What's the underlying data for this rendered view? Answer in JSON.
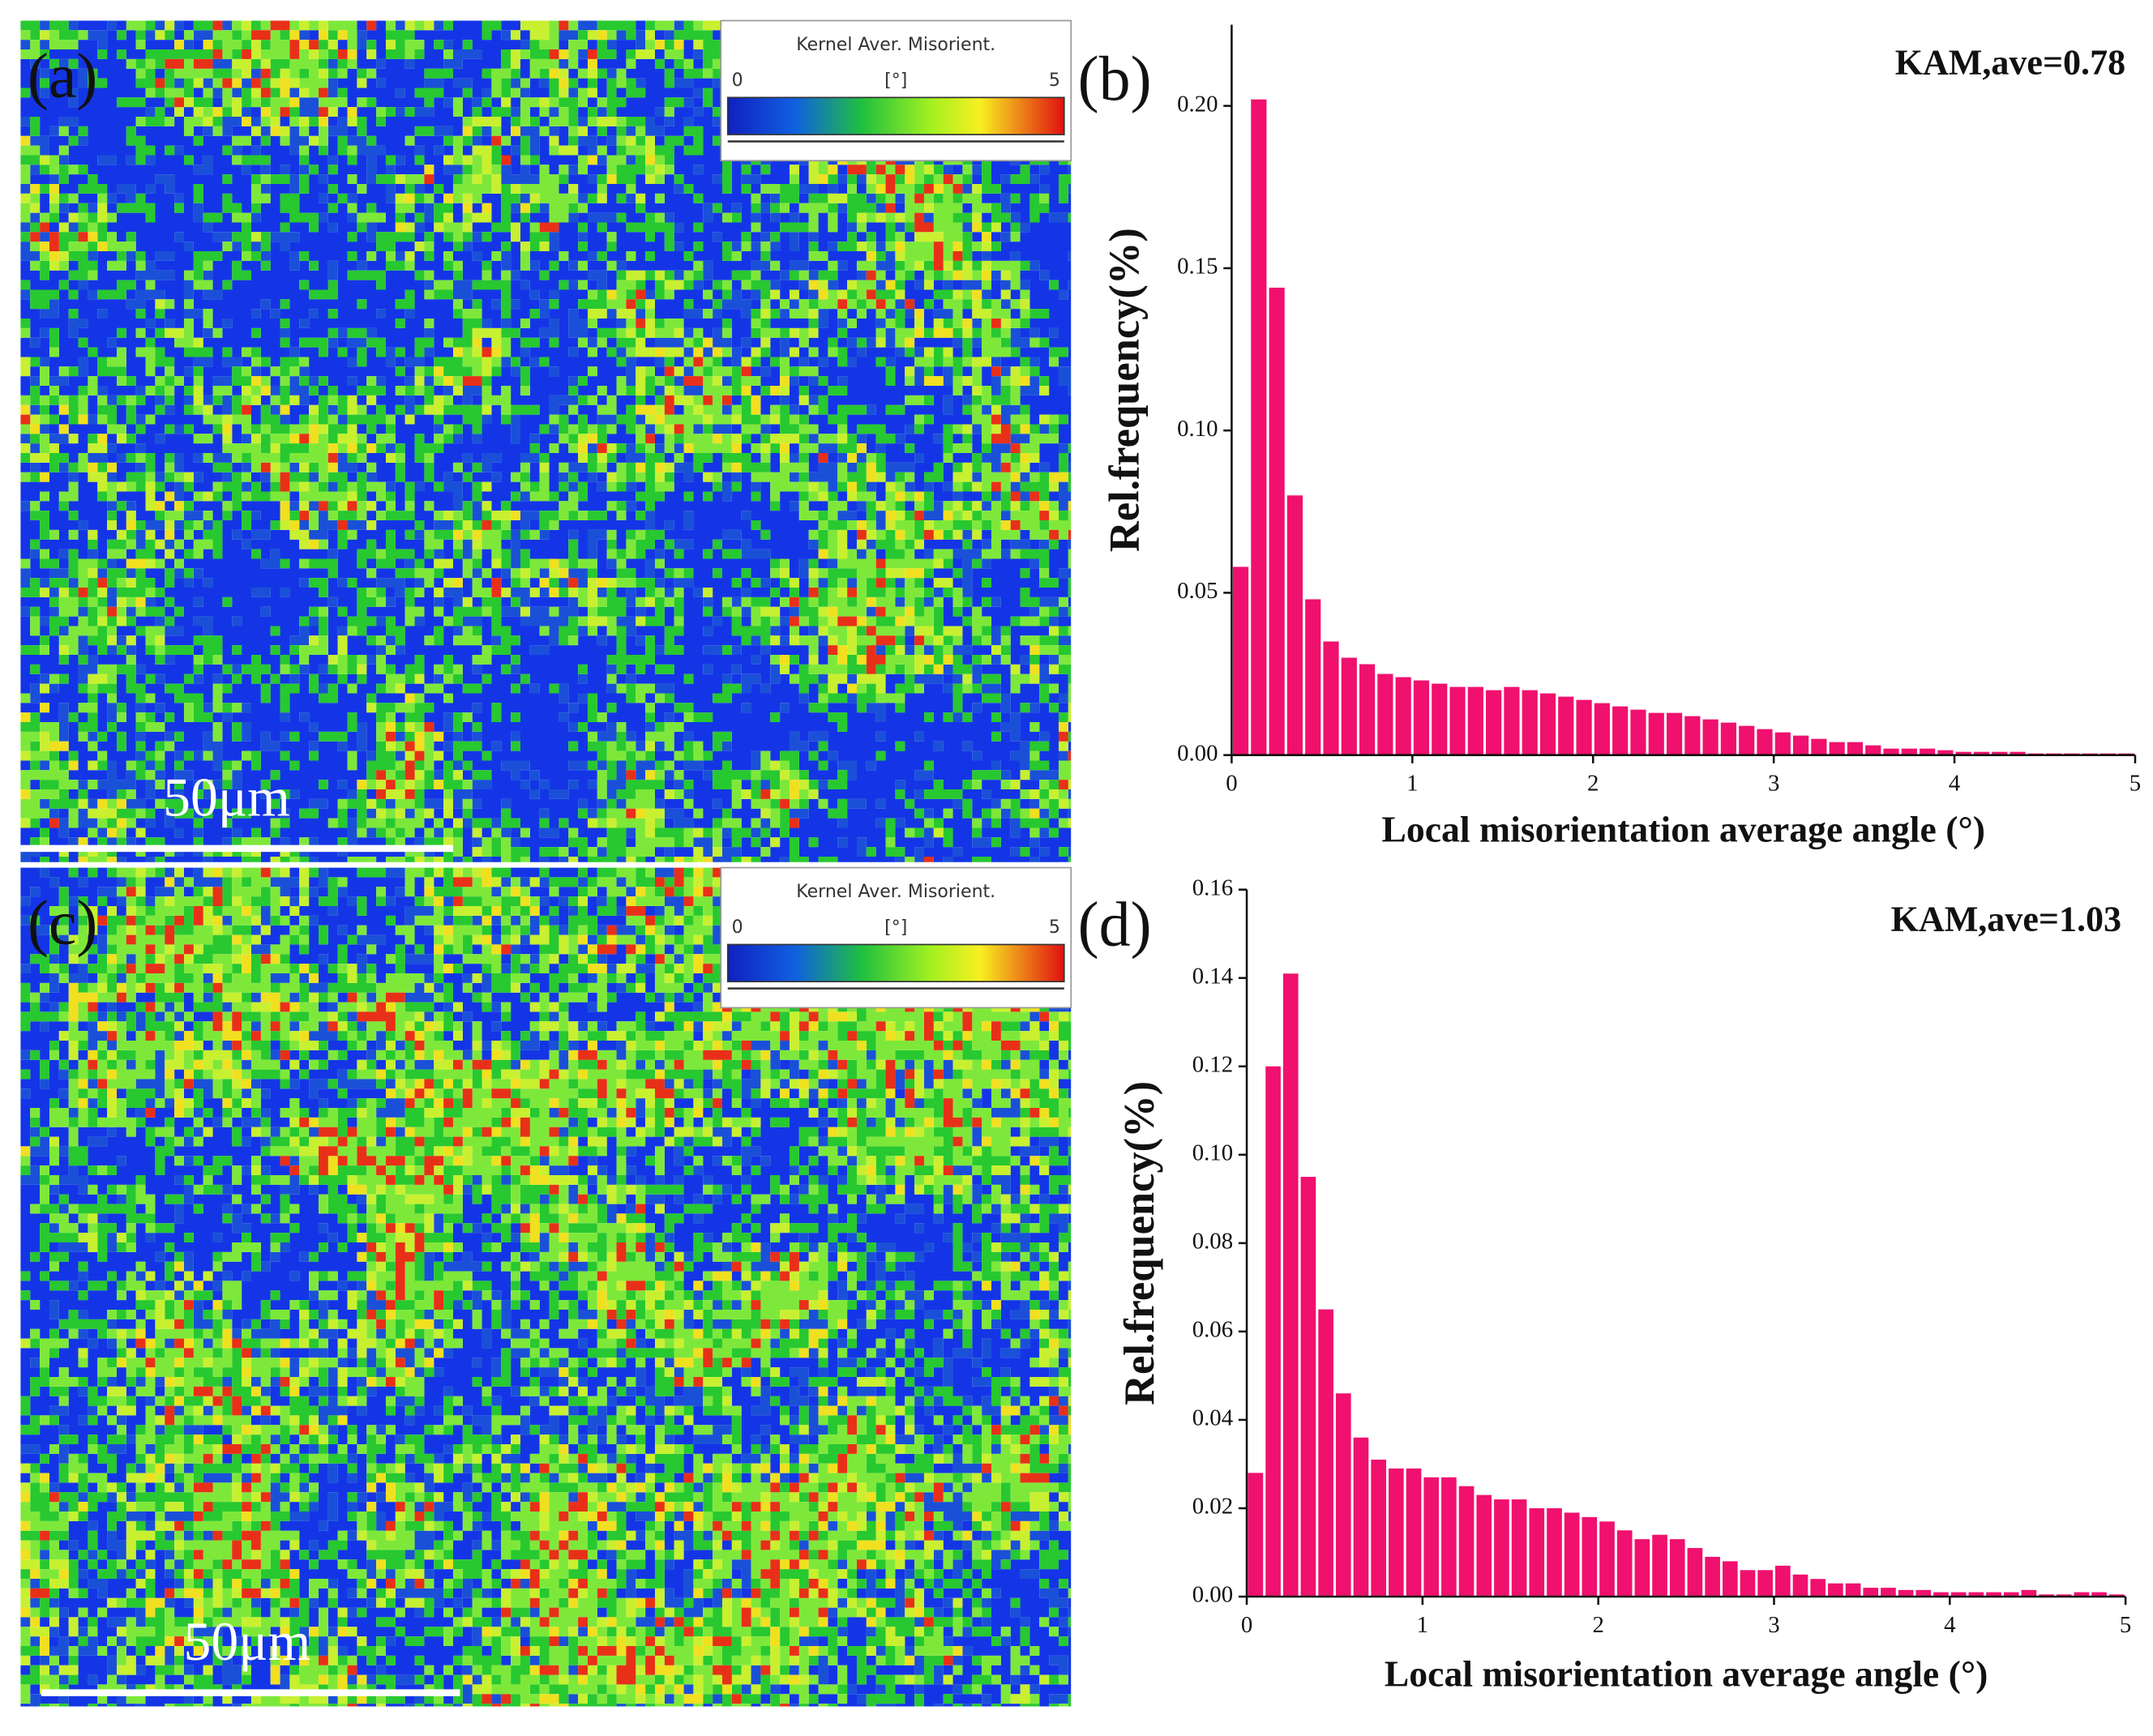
{
  "maps": [
    {
      "label": "(a)",
      "scale_bar": "50μm",
      "legend": {
        "title": "Kernel Aver. Misorient.",
        "unit": "[°]",
        "min": 0,
        "max": 5
      }
    },
    {
      "label": "(c)",
      "scale_bar": "50μm",
      "legend": {
        "title": "Kernel Aver. Misorient.",
        "unit": "[°]",
        "min": 0,
        "max": 5
      }
    }
  ],
  "chart_data": [
    {
      "type": "histogram",
      "label": "(b)",
      "annotation": "KAM,ave=0.78",
      "xlabel": "Local misorientation average angle (°)",
      "ylabel": "Rel.frequency(%)",
      "color": "#f0106e",
      "bins": [
        0,
        0.1,
        0.2,
        0.3,
        0.4,
        0.5,
        0.6,
        0.7,
        0.8,
        0.9,
        1,
        1.1,
        1.2,
        1.3,
        1.4,
        1.5,
        1.6,
        1.7,
        1.8,
        1.9,
        2,
        2.1,
        2.2,
        2.3,
        2.4,
        2.5,
        2.6,
        2.7,
        2.8,
        2.9,
        3,
        3.1,
        3.2,
        3.3,
        3.4,
        3.5,
        3.6,
        3.7,
        3.8,
        3.9,
        4,
        4.1,
        4.2,
        4.3,
        4.4,
        4.5,
        4.6,
        4.7,
        4.8,
        4.9,
        5
      ],
      "values": [
        0.058,
        0.202,
        0.144,
        0.08,
        0.048,
        0.035,
        0.03,
        0.028,
        0.025,
        0.024,
        0.023,
        0.022,
        0.021,
        0.021,
        0.02,
        0.021,
        0.02,
        0.019,
        0.018,
        0.017,
        0.016,
        0.015,
        0.014,
        0.013,
        0.013,
        0.012,
        0.011,
        0.01,
        0.009,
        0.008,
        0.007,
        0.006,
        0.005,
        0.004,
        0.004,
        0.003,
        0.002,
        0.002,
        0.002,
        0.0015,
        0.001,
        0.001,
        0.001,
        0.001,
        0.0005,
        0.0005,
        0.0005,
        0.0005,
        0.0005,
        0.0005
      ],
      "xlim": [
        0,
        5
      ],
      "xticks": [
        0,
        1,
        2,
        3,
        4,
        5
      ],
      "ylim": [
        0,
        0.225
      ],
      "yticks": [
        {
          "value": 0,
          "label": "0.00"
        },
        {
          "value": 0.05,
          "label": "0.05"
        },
        {
          "value": 0.1,
          "label": "0.10"
        },
        {
          "value": 0.15,
          "label": "0.15"
        },
        {
          "value": 0.2,
          "label": "0.20"
        }
      ]
    },
    {
      "type": "histogram",
      "label": "(d)",
      "annotation": "KAM,ave=1.03",
      "xlabel": "Local misorientation average angle (°)",
      "ylabel": "Rel.frequency(%)",
      "color": "#f0106e",
      "bins": [
        0,
        0.1,
        0.2,
        0.3,
        0.4,
        0.5,
        0.6,
        0.7,
        0.8,
        0.9,
        1,
        1.1,
        1.2,
        1.3,
        1.4,
        1.5,
        1.6,
        1.7,
        1.8,
        1.9,
        2,
        2.1,
        2.2,
        2.3,
        2.4,
        2.5,
        2.6,
        2.7,
        2.8,
        2.9,
        3,
        3.1,
        3.2,
        3.3,
        3.4,
        3.5,
        3.6,
        3.7,
        3.8,
        3.9,
        4,
        4.1,
        4.2,
        4.3,
        4.4,
        4.5,
        4.6,
        4.7,
        4.8,
        4.9,
        5
      ],
      "values": [
        0.028,
        0.12,
        0.141,
        0.095,
        0.065,
        0.046,
        0.036,
        0.031,
        0.029,
        0.029,
        0.027,
        0.027,
        0.025,
        0.023,
        0.022,
        0.022,
        0.02,
        0.02,
        0.019,
        0.018,
        0.017,
        0.015,
        0.013,
        0.014,
        0.013,
        0.011,
        0.009,
        0.008,
        0.006,
        0.006,
        0.007,
        0.005,
        0.004,
        0.003,
        0.003,
        0.002,
        0.002,
        0.0015,
        0.0015,
        0.001,
        0.001,
        0.001,
        0.001,
        0.001,
        0.0015,
        0.0005,
        0.0005,
        0.001,
        0.001,
        0.0005
      ],
      "xlim": [
        0,
        5
      ],
      "xticks": [
        0,
        1,
        2,
        3,
        4,
        5
      ],
      "ylim": [
        0,
        0.16
      ],
      "yticks": [
        {
          "value": 0,
          "label": "0.00"
        },
        {
          "value": 0.02,
          "label": "0.02"
        },
        {
          "value": 0.04,
          "label": "0.04"
        },
        {
          "value": 0.06,
          "label": "0.06"
        },
        {
          "value": 0.08,
          "label": "0.08"
        },
        {
          "value": 0.1,
          "label": "0.10"
        },
        {
          "value": 0.12,
          "label": "0.12"
        },
        {
          "value": 0.14,
          "label": "0.14"
        },
        {
          "value": 0.16,
          "label": "0.16"
        }
      ]
    }
  ]
}
